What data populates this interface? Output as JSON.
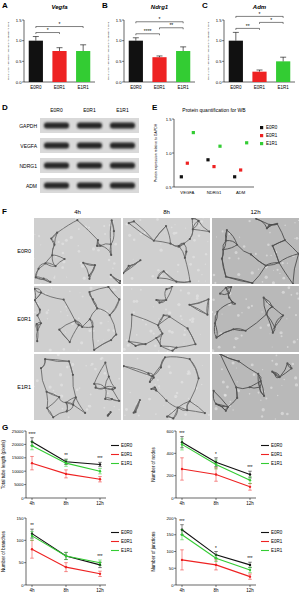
{
  "panel_labels": [
    "A",
    "B",
    "C",
    "D",
    "E",
    "F",
    "G"
  ],
  "chart_data": [
    {
      "type": "bar",
      "title": "Vegfa",
      "y_label": "Fold change in expression relative to housekeeping gene",
      "categories": [
        "E0R0",
        "E0R1",
        "E1R1"
      ],
      "values": [
        1.0,
        0.75,
        0.75
      ],
      "errors": [
        0.1,
        0.08,
        0.15
      ],
      "colors": [
        "#111111",
        "#ee2222",
        "#33cc33"
      ],
      "ylim": [
        0,
        1.5
      ],
      "yticks": [
        {
          "value": 0,
          "label": "0.0"
        },
        {
          "value": 0.5,
          "label": "0.5"
        },
        {
          "value": 1,
          "label": "1.0"
        },
        {
          "value": 1.5,
          "label": "1.5"
        }
      ],
      "grid": false,
      "comparisons": [
        {
          "pair": [
            "E0R0",
            "E0R1"
          ],
          "label": "*"
        },
        {
          "pair": [
            "E0R0",
            "E1R1"
          ],
          "label": "*"
        }
      ]
    },
    {
      "type": "bar",
      "title": "Ndrg1",
      "y_label": "Fold change in expression relative to housekeeping gene",
      "categories": [
        "E0R0",
        "E0R1",
        "E1R1"
      ],
      "values": [
        1.0,
        0.6,
        0.75
      ],
      "errors": [
        0.07,
        0.03,
        0.1
      ],
      "colors": [
        "#111111",
        "#ee2222",
        "#33cc33"
      ],
      "ylim": [
        0,
        1.5
      ],
      "yticks": [
        {
          "value": 0,
          "label": "0.0"
        },
        {
          "value": 0.5,
          "label": "0.5"
        },
        {
          "value": 1,
          "label": "1.0"
        },
        {
          "value": 1.5,
          "label": "1.5"
        }
      ],
      "grid": false,
      "comparisons": [
        {
          "pair": [
            "E0R0",
            "E0R1"
          ],
          "label": "****"
        },
        {
          "pair": [
            "E0R1",
            "E1R1"
          ],
          "label": "**"
        },
        {
          "pair": [
            "E0R0",
            "E1R1"
          ],
          "label": "*"
        }
      ]
    },
    {
      "type": "bar",
      "title": "Adm",
      "y_label": "Fold change in expression relative to housekeeping gene",
      "categories": [
        "E0R0",
        "E0R1",
        "E1R1"
      ],
      "values": [
        1.0,
        0.25,
        0.5
      ],
      "errors": [
        0.2,
        0.04,
        0.1
      ],
      "colors": [
        "#111111",
        "#ee2222",
        "#33cc33"
      ],
      "ylim": [
        0,
        1.5
      ],
      "yticks": [
        {
          "value": 0,
          "label": "0.0"
        },
        {
          "value": 0.5,
          "label": "0.5"
        },
        {
          "value": 1,
          "label": "1.0"
        },
        {
          "value": 1.5,
          "label": "1.5"
        }
      ],
      "grid": false,
      "comparisons": [
        {
          "pair": [
            "E0R0",
            "E0R1"
          ],
          "label": "**"
        },
        {
          "pair": [
            "E0R1",
            "E1R1"
          ],
          "label": "*"
        },
        {
          "pair": [
            "E0R0",
            "E1R1"
          ],
          "label": "*"
        }
      ]
    },
    {
      "type": "scatter",
      "title": "Protein quantification for WB",
      "y_label": "Protein expression relative to GAPDH",
      "categories": [
        "VEGFA",
        "NDRG1",
        "ADM"
      ],
      "marker": "square",
      "legend": "right",
      "grid": false,
      "ylim": [
        0.5,
        1.5
      ],
      "yticks": [
        {
          "value": 0.5,
          "label": "0.5"
        },
        {
          "value": 1,
          "label": "1.0"
        },
        {
          "value": 1.5,
          "label": "1.5"
        }
      ],
      "series": [
        {
          "name": "E0R0",
          "color": "#111111",
          "values": [
            0.65,
            0.9,
            0.65
          ]
        },
        {
          "name": "E0R1",
          "color": "#ee2222",
          "values": [
            0.85,
            0.8,
            0.75
          ]
        },
        {
          "name": "E1R1",
          "color": "#33cc33",
          "values": [
            1.3,
            1.1,
            1.15
          ]
        }
      ]
    },
    {
      "type": "line",
      "y_label": "Total tube length (pixels)",
      "categories": [
        "4h",
        "8h",
        "12h"
      ],
      "marker": "circle",
      "legend": "right",
      "grid": false,
      "ylim": [
        0,
        25000
      ],
      "yticks": [
        0,
        5000,
        10000,
        15000,
        20000,
        25000
      ],
      "series": [
        {
          "name": "E0R0",
          "color": "#111111",
          "values": [
            21000,
            13500,
            12500
          ],
          "errors": [
            1500,
            1000,
            800
          ]
        },
        {
          "name": "E0R1",
          "color": "#ee2222",
          "values": [
            13000,
            9000,
            7000
          ],
          "errors": [
            2500,
            1500,
            1000
          ]
        },
        {
          "name": "E1R1",
          "color": "#33cc33",
          "values": [
            19500,
            13000,
            10000
          ],
          "errors": [
            1500,
            1200,
            1000
          ]
        }
      ],
      "annotations": [
        {
          "x": "4h",
          "label": "****"
        },
        {
          "x": "8h",
          "label": "**"
        },
        {
          "x": "12h",
          "label": "***"
        }
      ]
    },
    {
      "type": "line",
      "y_label": "Number of nodes",
      "categories": [
        "4h",
        "8h",
        "12h"
      ],
      "marker": "circle",
      "legend": "right",
      "grid": false,
      "ylim": [
        0,
        600
      ],
      "yticks": [
        0,
        200,
        400,
        600
      ],
      "series": [
        {
          "name": "E0R0",
          "color": "#111111",
          "values": [
            500,
            320,
            210
          ],
          "errors": [
            50,
            40,
            30
          ]
        },
        {
          "name": "E0R1",
          "color": "#ee2222",
          "values": [
            260,
            210,
            100
          ],
          "errors": [
            100,
            60,
            30
          ]
        },
        {
          "name": "E1R1",
          "color": "#33cc33",
          "values": [
            480,
            300,
            160
          ],
          "errors": [
            50,
            40,
            30
          ]
        }
      ],
      "annotations": [
        {
          "x": "4h",
          "label": "***"
        },
        {
          "x": "8h",
          "label": "*"
        },
        {
          "x": "12h",
          "label": "***"
        }
      ]
    },
    {
      "type": "line",
      "y_label": "Number of branches",
      "categories": [
        "4h",
        "8h",
        "12h"
      ],
      "marker": "circle",
      "legend": "right",
      "grid": false,
      "ylim": [
        0,
        150
      ],
      "yticks": [
        0,
        50,
        100,
        150
      ],
      "series": [
        {
          "name": "E0R0",
          "color": "#111111",
          "values": [
            115,
            65,
            45
          ],
          "errors": [
            10,
            8,
            6
          ]
        },
        {
          "name": "E0R1",
          "color": "#ee2222",
          "values": [
            80,
            40,
            25
          ],
          "errors": [
            20,
            10,
            6
          ]
        },
        {
          "name": "E1R1",
          "color": "#33cc33",
          "values": [
            110,
            65,
            50
          ],
          "errors": [
            10,
            8,
            6
          ]
        }
      ],
      "annotations": [
        {
          "x": "4h",
          "label": "**"
        },
        {
          "x": "12h",
          "label": "***"
        }
      ]
    },
    {
      "type": "line",
      "y_label": "Number of junctions",
      "categories": [
        "4h",
        "8h",
        "12h"
      ],
      "marker": "circle",
      "legend": "right",
      "grid": false,
      "ylim": [
        0,
        200
      ],
      "yticks": [
        0,
        50,
        100,
        150,
        200
      ],
      "series": [
        {
          "name": "E0R0",
          "color": "#111111",
          "values": [
            165,
            90,
            60
          ],
          "errors": [
            15,
            10,
            8
          ]
        },
        {
          "name": "E0R1",
          "color": "#ee2222",
          "values": [
            75,
            60,
            25
          ],
          "errors": [
            30,
            15,
            8
          ]
        },
        {
          "name": "E1R1",
          "color": "#33cc33",
          "values": [
            150,
            80,
            45
          ],
          "errors": [
            15,
            10,
            8
          ]
        }
      ],
      "annotations": [
        {
          "x": "4h",
          "label": "***"
        },
        {
          "x": "8h",
          "label": "*"
        },
        {
          "x": "12h",
          "label": "***"
        }
      ]
    }
  ],
  "blot": {
    "rows": [
      "GAPDH",
      "VEGFA",
      "NDRG1",
      "ADM"
    ],
    "columns": [
      "E0R0",
      "E0R1",
      "E1R1"
    ]
  },
  "images": {
    "times": [
      "4h",
      "8h",
      "12h"
    ],
    "groups": [
      "E0R0",
      "E0R1",
      "E1R1"
    ]
  }
}
